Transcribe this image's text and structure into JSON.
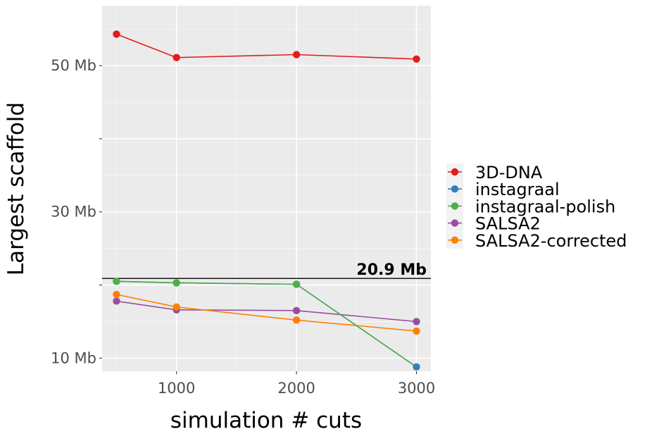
{
  "chart_data": {
    "type": "line",
    "xlabel": "simulation # cuts",
    "ylabel": "Largest scaffold",
    "x_ticks": [
      1000,
      2000,
      3000
    ],
    "y_ticks": [
      {
        "value": 10,
        "label": "10 Mb"
      },
      {
        "value": 20,
        "label": ""
      },
      {
        "value": 30,
        "label": "30 Mb"
      },
      {
        "value": 40,
        "label": ""
      },
      {
        "value": 50,
        "label": "50 Mb"
      }
    ],
    "xlim": [
      380,
      3120
    ],
    "ylim": [
      8.2,
      58.2
    ],
    "grid": true,
    "legend_position": "right",
    "reference_line": {
      "value": 20.9,
      "label": "20.9 Mb",
      "color": "#000000"
    },
    "series": [
      {
        "name": "3D-DNA",
        "color": "#e41a1c",
        "x": [
          500,
          1000,
          2000,
          3000
        ],
        "y": [
          54.3,
          51.1,
          51.5,
          50.9
        ]
      },
      {
        "name": "instagraal",
        "color": "#377eb8",
        "x": [
          500,
          1000,
          2000,
          3000
        ],
        "y": [
          20.5,
          20.3,
          20.1,
          8.8
        ]
      },
      {
        "name": "instagraal-polish",
        "color": "#4daf4a",
        "x": [
          500,
          1000,
          2000
        ],
        "y": [
          20.5,
          20.3,
          20.1
        ]
      },
      {
        "name": "SALSA2",
        "color": "#984ea3",
        "x": [
          500,
          1000,
          2000,
          3000
        ],
        "y": [
          17.8,
          16.6,
          16.5,
          15.0
        ]
      },
      {
        "name": "SALSA2-corrected",
        "color": "#ff7f00",
        "x": [
          500,
          1000,
          2000,
          3000
        ],
        "y": [
          18.7,
          17.0,
          15.2,
          13.7
        ]
      }
    ],
    "extra_segments": [
      {
        "series": "instagraal-polish",
        "x": [
          2000,
          3000
        ],
        "y": [
          20.1,
          8.8
        ]
      }
    ]
  }
}
